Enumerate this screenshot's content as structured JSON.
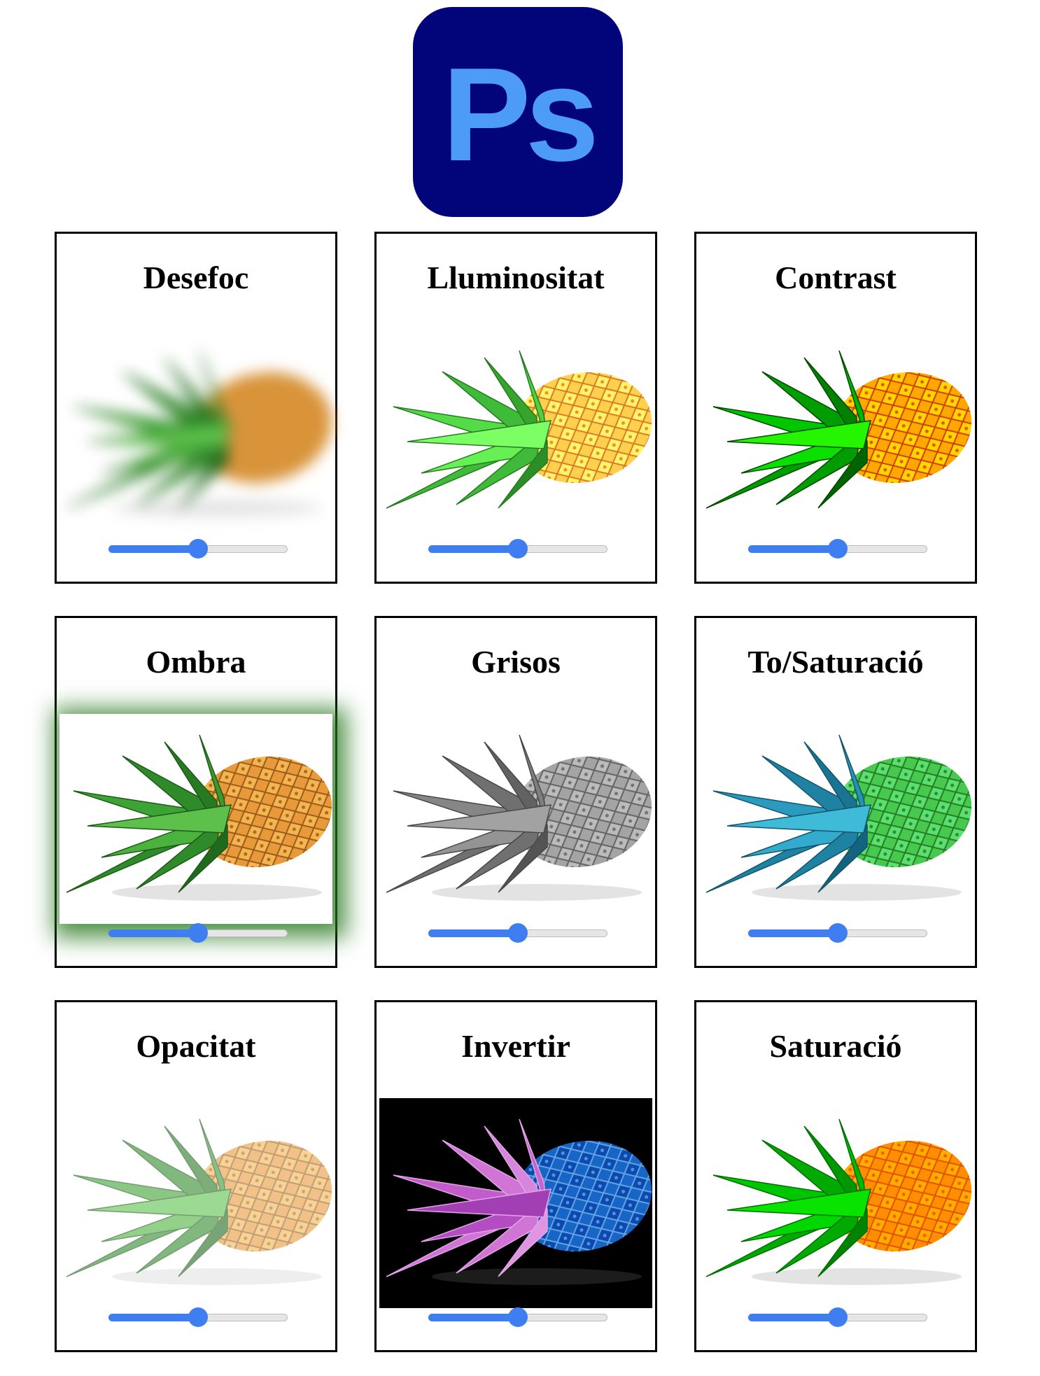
{
  "logo": {
    "text": "Ps",
    "background": "#02057a",
    "color": "#4c9bf7"
  },
  "accent_color": "#3e7ef0",
  "cards": [
    {
      "title": "Desefoc",
      "slider_value": 0.5
    },
    {
      "title": "Lluminositat",
      "slider_value": 0.5
    },
    {
      "title": "Contrast",
      "slider_value": 0.5
    },
    {
      "title": "Ombra",
      "slider_value": 0.5
    },
    {
      "title": "Grisos",
      "slider_value": 0.5
    },
    {
      "title": "To/Saturació",
      "slider_value": 0.5
    },
    {
      "title": "Opacitat",
      "slider_value": 0.5
    },
    {
      "title": "Invertir",
      "slider_value": 0.5
    },
    {
      "title": "Saturació",
      "slider_value": 0.5
    }
  ]
}
